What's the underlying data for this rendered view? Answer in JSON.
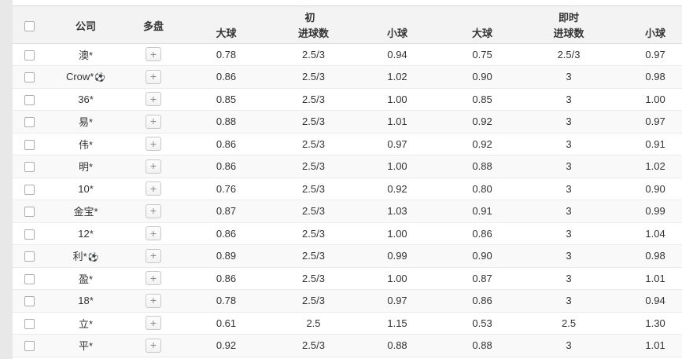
{
  "page": {
    "left_gutter_color": "#e8e8e8",
    "content_bg": "#ffffff",
    "header_bg": "#f3f3f3",
    "stripe_bg": "#f9f9f9",
    "text_color": "#333333"
  },
  "table": {
    "headers": {
      "company": "公司",
      "multi": "多盘",
      "initial_group": "初",
      "live_group": "即时",
      "over": "大球",
      "goals": "进球数",
      "under": "小球"
    },
    "plus_label": "+",
    "ball_icon": "⚽",
    "rows": [
      {
        "company": "澳*",
        "ball": false,
        "init_over": "0.78",
        "init_goals": "2.5/3",
        "init_under": "0.94",
        "live_over": "0.75",
        "live_goals": "2.5/3",
        "live_under": "0.97"
      },
      {
        "company": "Crow*",
        "ball": true,
        "init_over": "0.86",
        "init_goals": "2.5/3",
        "init_under": "1.02",
        "live_over": "0.90",
        "live_goals": "3",
        "live_under": "0.98"
      },
      {
        "company": "36*",
        "ball": false,
        "init_over": "0.85",
        "init_goals": "2.5/3",
        "init_under": "1.00",
        "live_over": "0.85",
        "live_goals": "3",
        "live_under": "1.00"
      },
      {
        "company": "易*",
        "ball": false,
        "init_over": "0.88",
        "init_goals": "2.5/3",
        "init_under": "1.01",
        "live_over": "0.92",
        "live_goals": "3",
        "live_under": "0.97"
      },
      {
        "company": "伟*",
        "ball": false,
        "init_over": "0.86",
        "init_goals": "2.5/3",
        "init_under": "0.97",
        "live_over": "0.92",
        "live_goals": "3",
        "live_under": "0.91"
      },
      {
        "company": "明*",
        "ball": false,
        "init_over": "0.86",
        "init_goals": "2.5/3",
        "init_under": "1.00",
        "live_over": "0.88",
        "live_goals": "3",
        "live_under": "1.02"
      },
      {
        "company": "10*",
        "ball": false,
        "init_over": "0.76",
        "init_goals": "2.5/3",
        "init_under": "0.92",
        "live_over": "0.80",
        "live_goals": "3",
        "live_under": "0.90"
      },
      {
        "company": "金宝*",
        "ball": false,
        "init_over": "0.87",
        "init_goals": "2.5/3",
        "init_under": "1.03",
        "live_over": "0.91",
        "live_goals": "3",
        "live_under": "0.99"
      },
      {
        "company": "12*",
        "ball": false,
        "init_over": "0.86",
        "init_goals": "2.5/3",
        "init_under": "1.00",
        "live_over": "0.86",
        "live_goals": "3",
        "live_under": "1.04"
      },
      {
        "company": "利*",
        "ball": true,
        "init_over": "0.89",
        "init_goals": "2.5/3",
        "init_under": "0.99",
        "live_over": "0.90",
        "live_goals": "3",
        "live_under": "0.98"
      },
      {
        "company": "盈*",
        "ball": false,
        "init_over": "0.86",
        "init_goals": "2.5/3",
        "init_under": "1.00",
        "live_over": "0.87",
        "live_goals": "3",
        "live_under": "1.01"
      },
      {
        "company": "18*",
        "ball": false,
        "init_over": "0.78",
        "init_goals": "2.5/3",
        "init_under": "0.97",
        "live_over": "0.86",
        "live_goals": "3",
        "live_under": "0.94"
      },
      {
        "company": "立*",
        "ball": false,
        "init_over": "0.61",
        "init_goals": "2.5",
        "init_under": "1.15",
        "live_over": "0.53",
        "live_goals": "2.5",
        "live_under": "1.30"
      },
      {
        "company": "平*",
        "ball": false,
        "init_over": "0.92",
        "init_goals": "2.5/3",
        "init_under": "0.88",
        "live_over": "0.88",
        "live_goals": "3",
        "live_under": "1.01"
      }
    ]
  }
}
